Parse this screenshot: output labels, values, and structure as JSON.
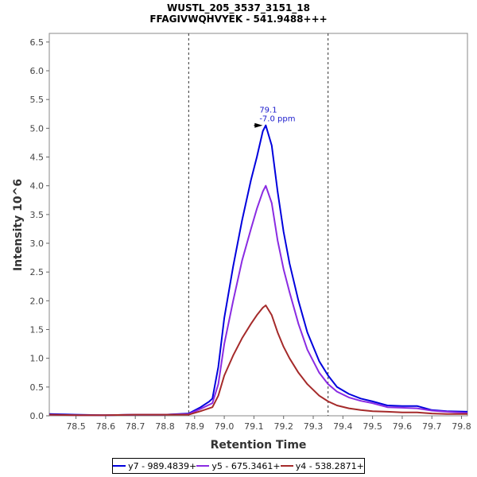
{
  "chart_data": {
    "type": "line",
    "title": "WUSTL_205_3537_3151_18",
    "subtitle": "FFAGIVWQHVYEK - 541.9488+++",
    "xlabel": "Retention Time",
    "ylabel": "Intensity 10^6",
    "xlim": [
      78.41,
      79.82
    ],
    "ylim": [
      0,
      6.65
    ],
    "x_ticks": [
      "78.5",
      "78.6",
      "78.7",
      "78.8",
      "78.9",
      "79.0",
      "79.1",
      "79.2",
      "79.3",
      "79.4",
      "79.5",
      "79.6",
      "79.7",
      "79.8"
    ],
    "y_ticks": [
      "0.0",
      "0.5",
      "1.0",
      "1.5",
      "2.0",
      "2.5",
      "3.0",
      "3.5",
      "4.0",
      "4.5",
      "5.0",
      "5.5",
      "6.0",
      "6.5"
    ],
    "grid": false,
    "legend_position": "bottom",
    "vertical_lines": [
      78.88,
      79.35
    ],
    "annotation": {
      "x": 79.14,
      "y": 5.05,
      "label_line1": "79.1",
      "label_line2": "-7.0 ppm"
    },
    "series": [
      {
        "name": "y7 - 989.4839+",
        "color": "#0000dd",
        "points": [
          [
            78.41,
            0.03
          ],
          [
            78.5,
            0.02
          ],
          [
            78.6,
            0.01
          ],
          [
            78.7,
            0.02
          ],
          [
            78.8,
            0.02
          ],
          [
            78.88,
            0.04
          ],
          [
            78.92,
            0.15
          ],
          [
            78.95,
            0.25
          ],
          [
            78.96,
            0.3
          ],
          [
            78.98,
            0.85
          ],
          [
            79.0,
            1.7
          ],
          [
            79.03,
            2.6
          ],
          [
            79.06,
            3.4
          ],
          [
            79.09,
            4.1
          ],
          [
            79.11,
            4.5
          ],
          [
            79.13,
            4.95
          ],
          [
            79.14,
            5.05
          ],
          [
            79.16,
            4.7
          ],
          [
            79.18,
            3.9
          ],
          [
            79.2,
            3.2
          ],
          [
            79.22,
            2.65
          ],
          [
            79.25,
            2.0
          ],
          [
            79.28,
            1.45
          ],
          [
            79.32,
            0.95
          ],
          [
            79.35,
            0.7
          ],
          [
            79.38,
            0.5
          ],
          [
            79.42,
            0.38
          ],
          [
            79.46,
            0.3
          ],
          [
            79.5,
            0.25
          ],
          [
            79.55,
            0.18
          ],
          [
            79.6,
            0.17
          ],
          [
            79.65,
            0.17
          ],
          [
            79.7,
            0.1
          ],
          [
            79.75,
            0.08
          ],
          [
            79.82,
            0.07
          ]
        ]
      },
      {
        "name": "y5 - 675.3461+",
        "color": "#8a2be2",
        "points": [
          [
            78.41,
            0.02
          ],
          [
            78.5,
            0.01
          ],
          [
            78.6,
            0.01
          ],
          [
            78.7,
            0.02
          ],
          [
            78.8,
            0.02
          ],
          [
            78.88,
            0.03
          ],
          [
            78.92,
            0.12
          ],
          [
            78.96,
            0.22
          ],
          [
            78.98,
            0.55
          ],
          [
            79.0,
            1.25
          ],
          [
            79.03,
            2.0
          ],
          [
            79.06,
            2.7
          ],
          [
            79.09,
            3.25
          ],
          [
            79.11,
            3.6
          ],
          [
            79.13,
            3.9
          ],
          [
            79.14,
            4.0
          ],
          [
            79.16,
            3.7
          ],
          [
            79.18,
            3.05
          ],
          [
            79.2,
            2.55
          ],
          [
            79.22,
            2.15
          ],
          [
            79.25,
            1.6
          ],
          [
            79.28,
            1.15
          ],
          [
            79.32,
            0.75
          ],
          [
            79.35,
            0.55
          ],
          [
            79.38,
            0.42
          ],
          [
            79.42,
            0.32
          ],
          [
            79.46,
            0.26
          ],
          [
            79.5,
            0.22
          ],
          [
            79.55,
            0.15
          ],
          [
            79.6,
            0.14
          ],
          [
            79.65,
            0.13
          ],
          [
            79.7,
            0.09
          ],
          [
            79.75,
            0.07
          ],
          [
            79.82,
            0.05
          ]
        ]
      },
      {
        "name": "y4 - 538.2871+",
        "color": "#a52a2a",
        "points": [
          [
            78.41,
            0.02
          ],
          [
            78.5,
            0.01
          ],
          [
            78.6,
            0.01
          ],
          [
            78.7,
            0.02
          ],
          [
            78.8,
            0.02
          ],
          [
            78.88,
            0.02
          ],
          [
            78.92,
            0.08
          ],
          [
            78.96,
            0.15
          ],
          [
            78.98,
            0.35
          ],
          [
            79.0,
            0.7
          ],
          [
            79.03,
            1.05
          ],
          [
            79.06,
            1.35
          ],
          [
            79.09,
            1.6
          ],
          [
            79.11,
            1.75
          ],
          [
            79.13,
            1.88
          ],
          [
            79.14,
            1.92
          ],
          [
            79.16,
            1.75
          ],
          [
            79.18,
            1.45
          ],
          [
            79.2,
            1.2
          ],
          [
            79.22,
            1.0
          ],
          [
            79.25,
            0.75
          ],
          [
            79.28,
            0.55
          ],
          [
            79.32,
            0.35
          ],
          [
            79.35,
            0.25
          ],
          [
            79.38,
            0.18
          ],
          [
            79.42,
            0.13
          ],
          [
            79.46,
            0.1
          ],
          [
            79.5,
            0.08
          ],
          [
            79.55,
            0.07
          ],
          [
            79.6,
            0.06
          ],
          [
            79.65,
            0.06
          ],
          [
            79.7,
            0.04
          ],
          [
            79.75,
            0.03
          ],
          [
            79.82,
            0.03
          ]
        ]
      }
    ]
  }
}
